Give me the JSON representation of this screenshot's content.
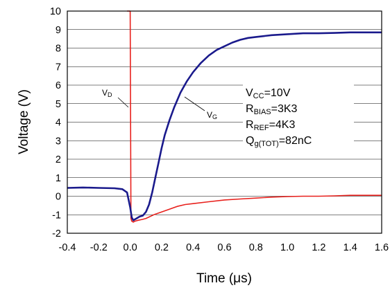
{
  "chart_data": {
    "type": "line",
    "title": "",
    "xlabel": "Time (μs)",
    "ylabel": "Voltage (V)",
    "xlim": [
      -0.4,
      1.6
    ],
    "ylim": [
      -2,
      10
    ],
    "x_ticks": [
      "-0.4",
      "-0.2",
      "0.0",
      "0.2",
      "0.4",
      "0.6",
      "0.8",
      "1.0",
      "1.2",
      "1.4",
      "1.6"
    ],
    "y_ticks": [
      "-2",
      "-1",
      "0",
      "1",
      "2",
      "3",
      "4",
      "5",
      "6",
      "7",
      "8",
      "9",
      "10"
    ],
    "grid": "horizontal",
    "legend": "none",
    "series": [
      {
        "color": "#1a1a8c",
        "x": [
          -0.4,
          -0.3,
          -0.2,
          -0.1,
          -0.05,
          -0.02,
          0.0,
          0.01,
          0.02,
          0.04,
          0.06,
          0.08,
          0.1,
          0.12,
          0.14,
          0.16,
          0.18,
          0.2,
          0.22,
          0.25,
          0.28,
          0.32,
          0.36,
          0.4,
          0.45,
          0.5,
          0.55,
          0.6,
          0.65,
          0.7,
          0.75,
          0.8,
          0.9,
          1.0,
          1.1,
          1.2,
          1.3,
          1.4,
          1.5,
          1.6
        ],
        "y": [
          0.45,
          0.47,
          0.45,
          0.43,
          0.38,
          0.2,
          -0.6,
          -1.15,
          -1.3,
          -1.2,
          -1.1,
          -1.05,
          -0.85,
          -0.45,
          0.2,
          1.0,
          1.8,
          2.6,
          3.3,
          4.1,
          4.8,
          5.6,
          6.2,
          6.7,
          7.2,
          7.6,
          7.9,
          8.1,
          8.3,
          8.45,
          8.55,
          8.6,
          8.7,
          8.75,
          8.8,
          8.8,
          8.82,
          8.85,
          8.85,
          8.85
        ]
      },
      {
        "color": "#e8201c",
        "x": [
          -0.02,
          -0.01,
          0.0,
          0.005,
          0.01,
          0.02,
          0.03,
          0.05,
          0.08,
          0.1,
          0.15,
          0.2,
          0.25,
          0.3,
          0.35,
          0.4,
          0.5,
          0.6,
          0.7,
          0.8,
          0.9,
          1.0,
          1.1,
          1.2,
          1.3,
          1.4,
          1.5,
          1.6
        ],
        "y": [
          10,
          10,
          10,
          -1.2,
          -1.35,
          -1.4,
          -1.35,
          -1.3,
          -1.25,
          -1.2,
          -1.0,
          -0.85,
          -0.7,
          -0.55,
          -0.45,
          -0.4,
          -0.3,
          -0.2,
          -0.15,
          -0.1,
          -0.05,
          -0.02,
          0.0,
          0.0,
          0.02,
          0.05,
          0.05,
          0.05
        ]
      }
    ],
    "annotations": {
      "vcc_main": "V",
      "vcc_sub": "CC",
      "vcc_rest": "=10V",
      "rbias_main": "R",
      "rbias_sub": "BIAS",
      "rbias_rest": "=3K3",
      "rref_main": "R",
      "rref_sub": "REF",
      "rref_rest": "=4K3",
      "qg_main": "Q",
      "qg_sub": "g(TOT)",
      "qg_rest": "=82nC",
      "vd_main": "V",
      "vd_sub": "D",
      "vg_main": "V",
      "vg_sub": "G"
    }
  }
}
